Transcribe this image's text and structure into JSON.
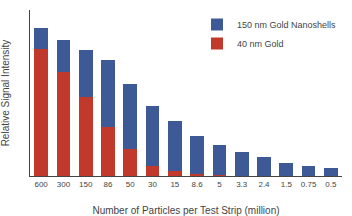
{
  "chart_data": {
    "type": "bar",
    "stacked": true,
    "xlabel": "Number of Particles per Test Strip (million)",
    "ylabel": "Relative Signal Intensity",
    "categories": [
      "600",
      "300",
      "150",
      "86",
      "50",
      "30",
      "15",
      "8.6",
      "5",
      "3.3",
      "2.4",
      "1.5",
      "0.75",
      "0.5"
    ],
    "series": [
      {
        "name": "40 nm Gold",
        "color": "#c0392b",
        "values": [
          86,
          70,
          53,
          33,
          18,
          7,
          3.5,
          1.5,
          0.8,
          0,
          0,
          0,
          0,
          0
        ]
      },
      {
        "name": "150 nm Gold Nanoshells",
        "color": "#3d5a96",
        "values": [
          14,
          22,
          32,
          45,
          44,
          40,
          33.5,
          25.5,
          20.2,
          16,
          13,
          9,
          7,
          5.5
        ]
      }
    ],
    "ylim": [
      0,
      112
    ],
    "tick_labels": "x",
    "grid": false,
    "legend": "upper right"
  }
}
